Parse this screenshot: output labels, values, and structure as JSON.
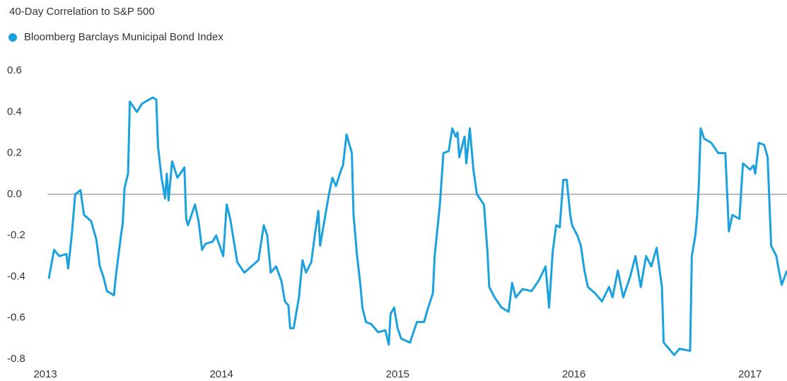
{
  "chart_data": {
    "type": "line",
    "title": "40-Day Correlation to S&P 500",
    "x": [
      2013.02,
      2013.05,
      2013.08,
      2013.12,
      2013.13,
      2013.15,
      2013.17,
      2013.2,
      2013.22,
      2013.26,
      2013.29,
      2013.31,
      2013.33,
      2013.35,
      2013.39,
      2013.4,
      2013.43,
      2013.44,
      2013.45,
      2013.47,
      2013.48,
      2013.52,
      2013.55,
      2013.61,
      2013.63,
      2013.64,
      2013.66,
      2013.68,
      2013.69,
      2013.7,
      2013.72,
      2013.75,
      2013.79,
      2013.8,
      2013.81,
      2013.85,
      2013.87,
      2013.89,
      2013.91,
      2013.95,
      2013.97,
      2014.01,
      2014.03,
      2014.05,
      2014.09,
      2014.13,
      2014.17,
      2014.21,
      2014.24,
      2014.26,
      2014.28,
      2014.31,
      2014.34,
      2014.36,
      2014.38,
      2014.39,
      2014.41,
      2014.44,
      2014.46,
      2014.48,
      2014.51,
      2014.53,
      2014.55,
      2014.56,
      2014.58,
      2014.6,
      2014.61,
      2014.63,
      2014.65,
      2014.68,
      2014.69,
      2014.71,
      2014.74,
      2014.75,
      2014.77,
      2014.79,
      2014.8,
      2014.82,
      2014.85,
      2014.89,
      2014.93,
      2014.95,
      2014.96,
      2014.98,
      2015.0,
      2015.02,
      2015.07,
      2015.11,
      2015.15,
      2015.17,
      2015.2,
      2015.21,
      2015.24,
      2015.26,
      2015.29,
      2015.31,
      2015.33,
      2015.34,
      2015.35,
      2015.38,
      2015.39,
      2015.41,
      2015.43,
      2015.45,
      2015.49,
      2015.51,
      2015.52,
      2015.55,
      2015.59,
      2015.63,
      2015.65,
      2015.67,
      2015.71,
      2015.76,
      2015.8,
      2015.84,
      2015.86,
      2015.88,
      2015.9,
      2015.92,
      2015.94,
      2015.96,
      2015.98,
      2015.99,
      2016.02,
      2016.04,
      2016.06,
      2016.08,
      2016.12,
      2016.16,
      2016.2,
      2016.22,
      2016.25,
      2016.28,
      2016.32,
      2016.35,
      2016.38,
      2016.41,
      2016.44,
      2016.47,
      2016.5,
      2016.51,
      2016.54,
      2016.57,
      2016.6,
      2016.66,
      2016.67,
      2016.69,
      2016.7,
      2016.71,
      2016.72,
      2016.74,
      2016.78,
      2016.82,
      2016.86,
      2016.88,
      2016.9,
      2016.94,
      2016.96,
      2017.0,
      2017.02,
      2017.03,
      2017.05,
      2017.08,
      2017.1,
      2017.12,
      2017.15,
      2017.16,
      2017.18,
      2017.21
    ],
    "series": [
      {
        "name": "Bloomberg Barclays Municipal Bond Index",
        "color": "#1ba1dd",
        "values": [
          -0.41,
          -0.27,
          -0.3,
          -0.29,
          -0.36,
          -0.2,
          0.0,
          0.02,
          -0.1,
          -0.13,
          -0.22,
          -0.35,
          -0.4,
          -0.47,
          -0.49,
          -0.4,
          -0.2,
          -0.14,
          0.03,
          0.1,
          0.45,
          0.4,
          0.44,
          0.47,
          0.46,
          0.23,
          0.08,
          -0.02,
          0.1,
          -0.03,
          0.16,
          0.08,
          0.13,
          -0.12,
          -0.15,
          -0.05,
          -0.13,
          -0.27,
          -0.24,
          -0.23,
          -0.2,
          -0.3,
          -0.05,
          -0.12,
          -0.33,
          -0.38,
          -0.35,
          -0.32,
          -0.15,
          -0.2,
          -0.38,
          -0.35,
          -0.42,
          -0.52,
          -0.54,
          -0.65,
          -0.65,
          -0.5,
          -0.32,
          -0.38,
          -0.33,
          -0.2,
          -0.08,
          -0.25,
          -0.15,
          -0.05,
          0.0,
          0.08,
          0.04,
          0.12,
          0.14,
          0.29,
          0.2,
          -0.1,
          -0.3,
          -0.45,
          -0.55,
          -0.62,
          -0.63,
          -0.67,
          -0.66,
          -0.73,
          -0.58,
          -0.55,
          -0.65,
          -0.7,
          -0.72,
          -0.62,
          -0.62,
          -0.56,
          -0.48,
          -0.3,
          -0.05,
          0.2,
          0.21,
          0.32,
          0.28,
          0.3,
          0.18,
          0.28,
          0.15,
          0.32,
          0.12,
          0.0,
          -0.05,
          -0.28,
          -0.45,
          -0.5,
          -0.55,
          -0.57,
          -0.43,
          -0.5,
          -0.46,
          -0.47,
          -0.42,
          -0.35,
          -0.55,
          -0.28,
          -0.15,
          -0.16,
          0.07,
          0.07,
          -0.1,
          -0.15,
          -0.2,
          -0.25,
          -0.37,
          -0.45,
          -0.48,
          -0.52,
          -0.45,
          -0.5,
          -0.37,
          -0.5,
          -0.4,
          -0.3,
          -0.45,
          -0.3,
          -0.35,
          -0.26,
          -0.45,
          -0.72,
          -0.75,
          -0.78,
          -0.75,
          -0.76,
          -0.3,
          -0.2,
          -0.1,
          0.05,
          0.32,
          0.27,
          0.25,
          0.2,
          0.2,
          -0.18,
          -0.1,
          -0.12,
          0.15,
          0.12,
          0.14,
          0.1,
          0.25,
          0.24,
          0.18,
          -0.25,
          -0.3,
          -0.35,
          -0.44,
          -0.37
        ]
      }
    ],
    "xlim": [
      2013,
      2017.21
    ],
    "xticks": [
      2013,
      2014,
      2015,
      2016,
      2017
    ],
    "ylim": [
      -0.8,
      0.6
    ],
    "yticks": [
      0.6,
      0.4,
      0.2,
      {
        "value": 0,
        "label": "0.0"
      },
      -0.2,
      -0.4,
      -0.6,
      -0.8
    ]
  }
}
